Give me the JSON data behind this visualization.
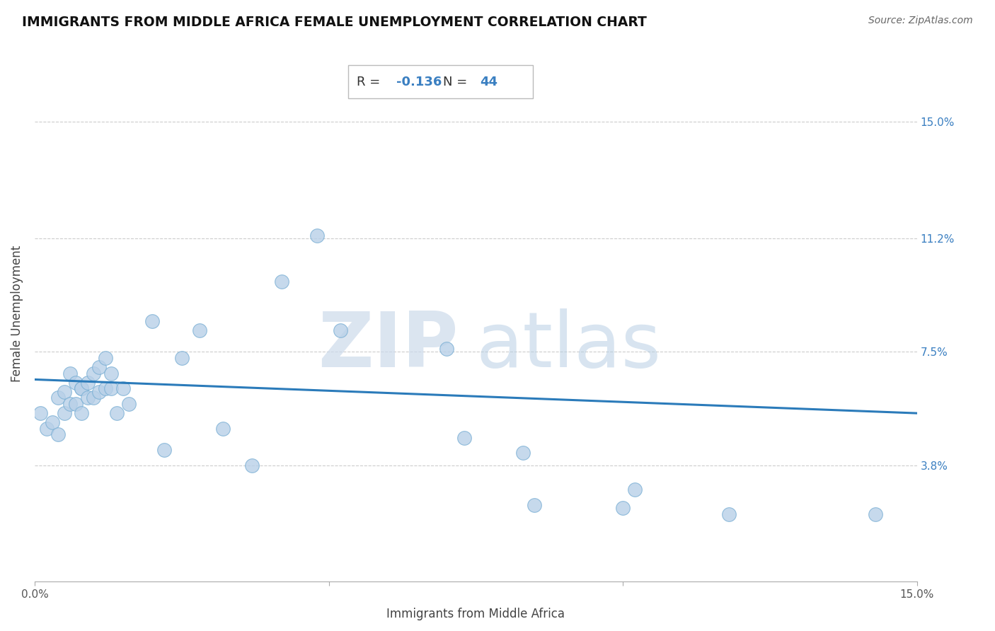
{
  "title": "IMMIGRANTS FROM MIDDLE AFRICA FEMALE UNEMPLOYMENT CORRELATION CHART",
  "source": "Source: ZipAtlas.com",
  "xlabel": "Immigrants from Middle Africa",
  "ylabel": "Female Unemployment",
  "xlim": [
    0.0,
    0.15
  ],
  "ylim": [
    0.0,
    0.175
  ],
  "xtick_pos": [
    0.0,
    0.05,
    0.1,
    0.15
  ],
  "xtick_labels": [
    "0.0%",
    "",
    "",
    "15.0%"
  ],
  "ytick_values": [
    0.038,
    0.075,
    0.112,
    0.15
  ],
  "ytick_labels": [
    "3.8%",
    "7.5%",
    "11.2%",
    "15.0%"
  ],
  "R": -0.136,
  "N": 44,
  "scatter_color": "#b8d0e8",
  "scatter_edge_color": "#7aafd4",
  "line_color": "#2b7bba",
  "annotation_blue": "#3a7fc1",
  "scatter_x": [
    0.001,
    0.002,
    0.003,
    0.004,
    0.004,
    0.005,
    0.005,
    0.006,
    0.006,
    0.007,
    0.007,
    0.008,
    0.008,
    0.008,
    0.009,
    0.009,
    0.01,
    0.01,
    0.011,
    0.011,
    0.012,
    0.012,
    0.013,
    0.013,
    0.014,
    0.015,
    0.016,
    0.02,
    0.022,
    0.025,
    0.028,
    0.032,
    0.037,
    0.042,
    0.048,
    0.052,
    0.07,
    0.073,
    0.083,
    0.085,
    0.1,
    0.102,
    0.118,
    0.143
  ],
  "scatter_y": [
    0.055,
    0.05,
    0.052,
    0.06,
    0.048,
    0.055,
    0.062,
    0.058,
    0.068,
    0.058,
    0.065,
    0.063,
    0.063,
    0.055,
    0.065,
    0.06,
    0.068,
    0.06,
    0.07,
    0.062,
    0.073,
    0.063,
    0.063,
    0.068,
    0.055,
    0.063,
    0.058,
    0.085,
    0.043,
    0.073,
    0.082,
    0.05,
    0.038,
    0.098,
    0.113,
    0.082,
    0.076,
    0.047,
    0.042,
    0.025,
    0.024,
    0.03,
    0.022,
    0.022
  ],
  "regression_x0": 0.0,
  "regression_x1": 0.15,
  "regression_y0": 0.066,
  "regression_y1": 0.055
}
